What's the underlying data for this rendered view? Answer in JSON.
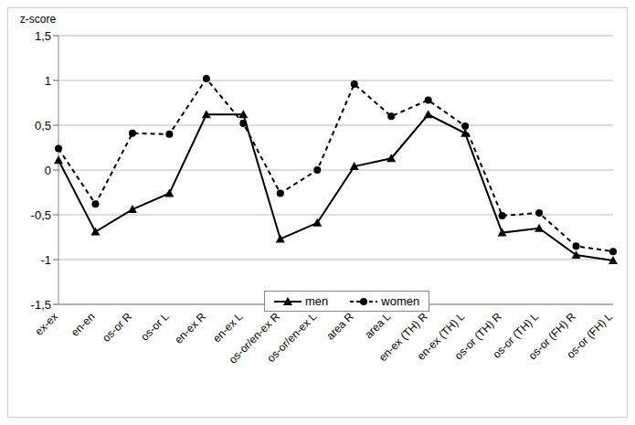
{
  "chart_data": {
    "type": "line",
    "y_label": "z-score",
    "categories": [
      "ex-ex",
      "en-en",
      "os-or R",
      "os-or L",
      "en-ex R",
      "en-ex L",
      "os-or/en-ex R",
      "os-or/en-ex L",
      "area R",
      "area L",
      "en-ex (TH) R",
      "en-ex (TH) L",
      "os-or (TH) R",
      "os-or (TH) L",
      "os-or (FH) R",
      "os-or (FH) L"
    ],
    "series": [
      {
        "name": "men",
        "color": "#000000",
        "marker": "triangle",
        "line_style": "solid",
        "values": [
          0.11,
          -0.69,
          -0.44,
          -0.26,
          0.62,
          0.62,
          -0.77,
          -0.59,
          0.04,
          0.13,
          0.62,
          0.41,
          -0.7,
          -0.65,
          -0.95,
          -1.01
        ]
      },
      {
        "name": "women",
        "color": "#000000",
        "marker": "circle",
        "line_style": "dashed",
        "values": [
          0.24,
          -0.38,
          0.41,
          0.4,
          1.02,
          0.52,
          -0.26,
          0.0,
          0.96,
          0.6,
          0.78,
          0.49,
          -0.51,
          -0.48,
          -0.85,
          -0.91
        ]
      }
    ],
    "ylim": [
      -1.5,
      1.5
    ],
    "yticks": [
      {
        "value": 1.5,
        "label": "1,5"
      },
      1,
      {
        "value": 0.5,
        "label": "0,5"
      },
      0,
      {
        "value": -0.5,
        "label": "-0,5"
      },
      -1,
      {
        "value": -1.5,
        "label": "-1,5"
      }
    ],
    "grid": true,
    "legend": "bottom"
  }
}
